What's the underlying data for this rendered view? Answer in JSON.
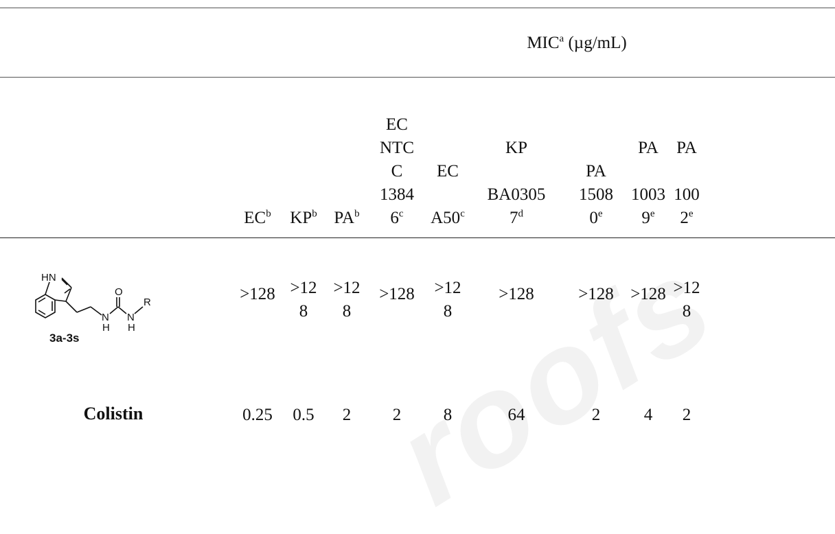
{
  "watermark": "roofs",
  "header": {
    "group_label": "MIC",
    "group_sup": "a",
    "group_units": " (µg/mL)"
  },
  "columns": [
    {
      "id": "c1",
      "lines": [
        "EC"
      ],
      "sup": "b"
    },
    {
      "id": "c2",
      "lines": [
        "KP"
      ],
      "sup": "b"
    },
    {
      "id": "c3",
      "lines": [
        "PA"
      ],
      "sup": "b"
    },
    {
      "id": "c4",
      "lines": [
        "EC",
        "NTC",
        "C",
        "1384",
        "6"
      ],
      "sup": "c"
    },
    {
      "id": "c5",
      "lines": [
        "EC",
        "",
        "A50"
      ],
      "sup": "c"
    },
    {
      "id": "c6",
      "lines": [
        "KP",
        "",
        "BA0305",
        "7"
      ],
      "sup": "d"
    },
    {
      "id": "c7",
      "lines": [
        "PA",
        "1508",
        "0"
      ],
      "sup": "e"
    },
    {
      "id": "c8",
      "lines": [
        "PA",
        "",
        "1003",
        "9"
      ],
      "sup": "e"
    },
    {
      "id": "c9",
      "lines": [
        "PA",
        "",
        "100",
        "2"
      ],
      "sup": "e"
    }
  ],
  "structure": {
    "atom_hn": "HN",
    "atom_o": "O",
    "atom_n1": "N",
    "atom_h1": "H",
    "atom_n2": "N",
    "atom_h2": "H",
    "atom_r": "R",
    "label": "3a-3s"
  },
  "rows": [
    {
      "name": "3a-3s",
      "values": [
        ">128",
        ">12\n8",
        ">12\n8",
        ">128",
        ">12\n8",
        ">128",
        ">128",
        ">128",
        ">12\n8"
      ]
    },
    {
      "name": "Colistin",
      "values": [
        "0.25",
        "0.5",
        "2",
        "2",
        "8",
        "64",
        "2",
        "4",
        "2"
      ]
    }
  ]
}
